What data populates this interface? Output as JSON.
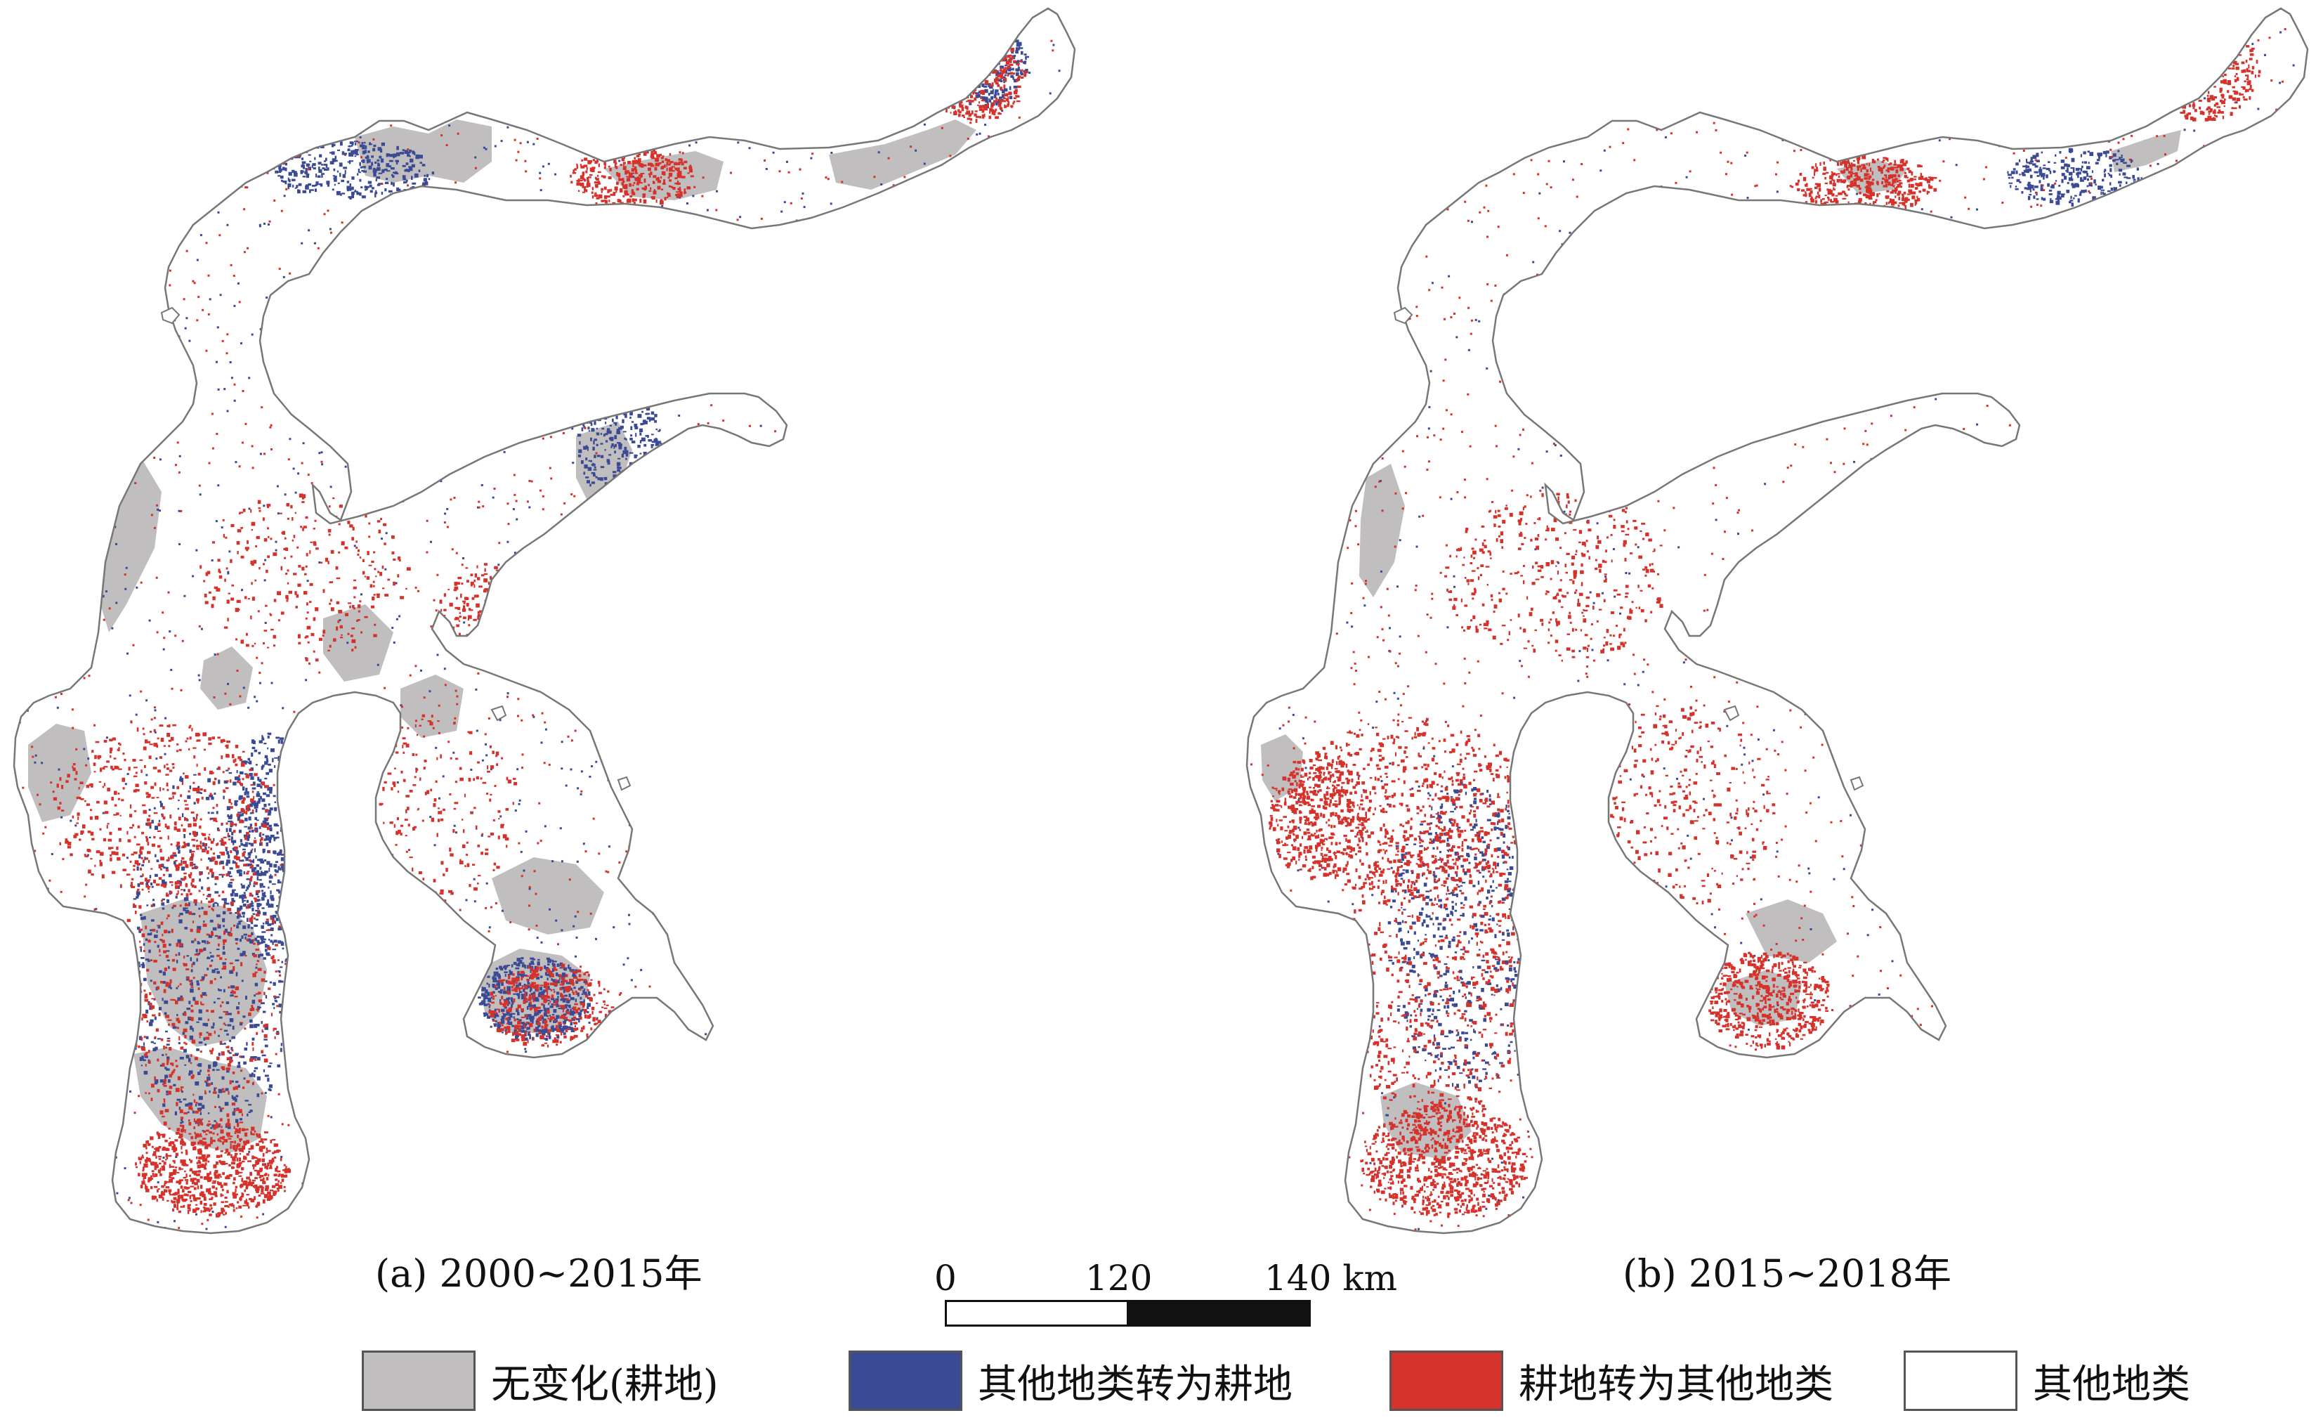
{
  "panels": [
    {
      "id": "a",
      "caption": "(a) 2000~2015年"
    },
    {
      "id": "b",
      "caption": "(b) 2015~2018年"
    }
  ],
  "scale_bar": {
    "labels": [
      "0",
      "120",
      "140 km"
    ]
  },
  "legend": [
    {
      "label": "无变化(耕地)",
      "color": "#c0bebe"
    },
    {
      "label": "其他地类转为耕地",
      "color": "#3b4a94"
    },
    {
      "label": "耕地转为其他地类",
      "color": "#d5322c"
    },
    {
      "label": "其他地类",
      "color": "#ffffff"
    }
  ],
  "colors": {
    "unchanged_cropland": "#c0bebe",
    "to_cropland": "#3b4a94",
    "from_cropland": "#d5322c",
    "other": "#ffffff",
    "outline": "#777777"
  }
}
